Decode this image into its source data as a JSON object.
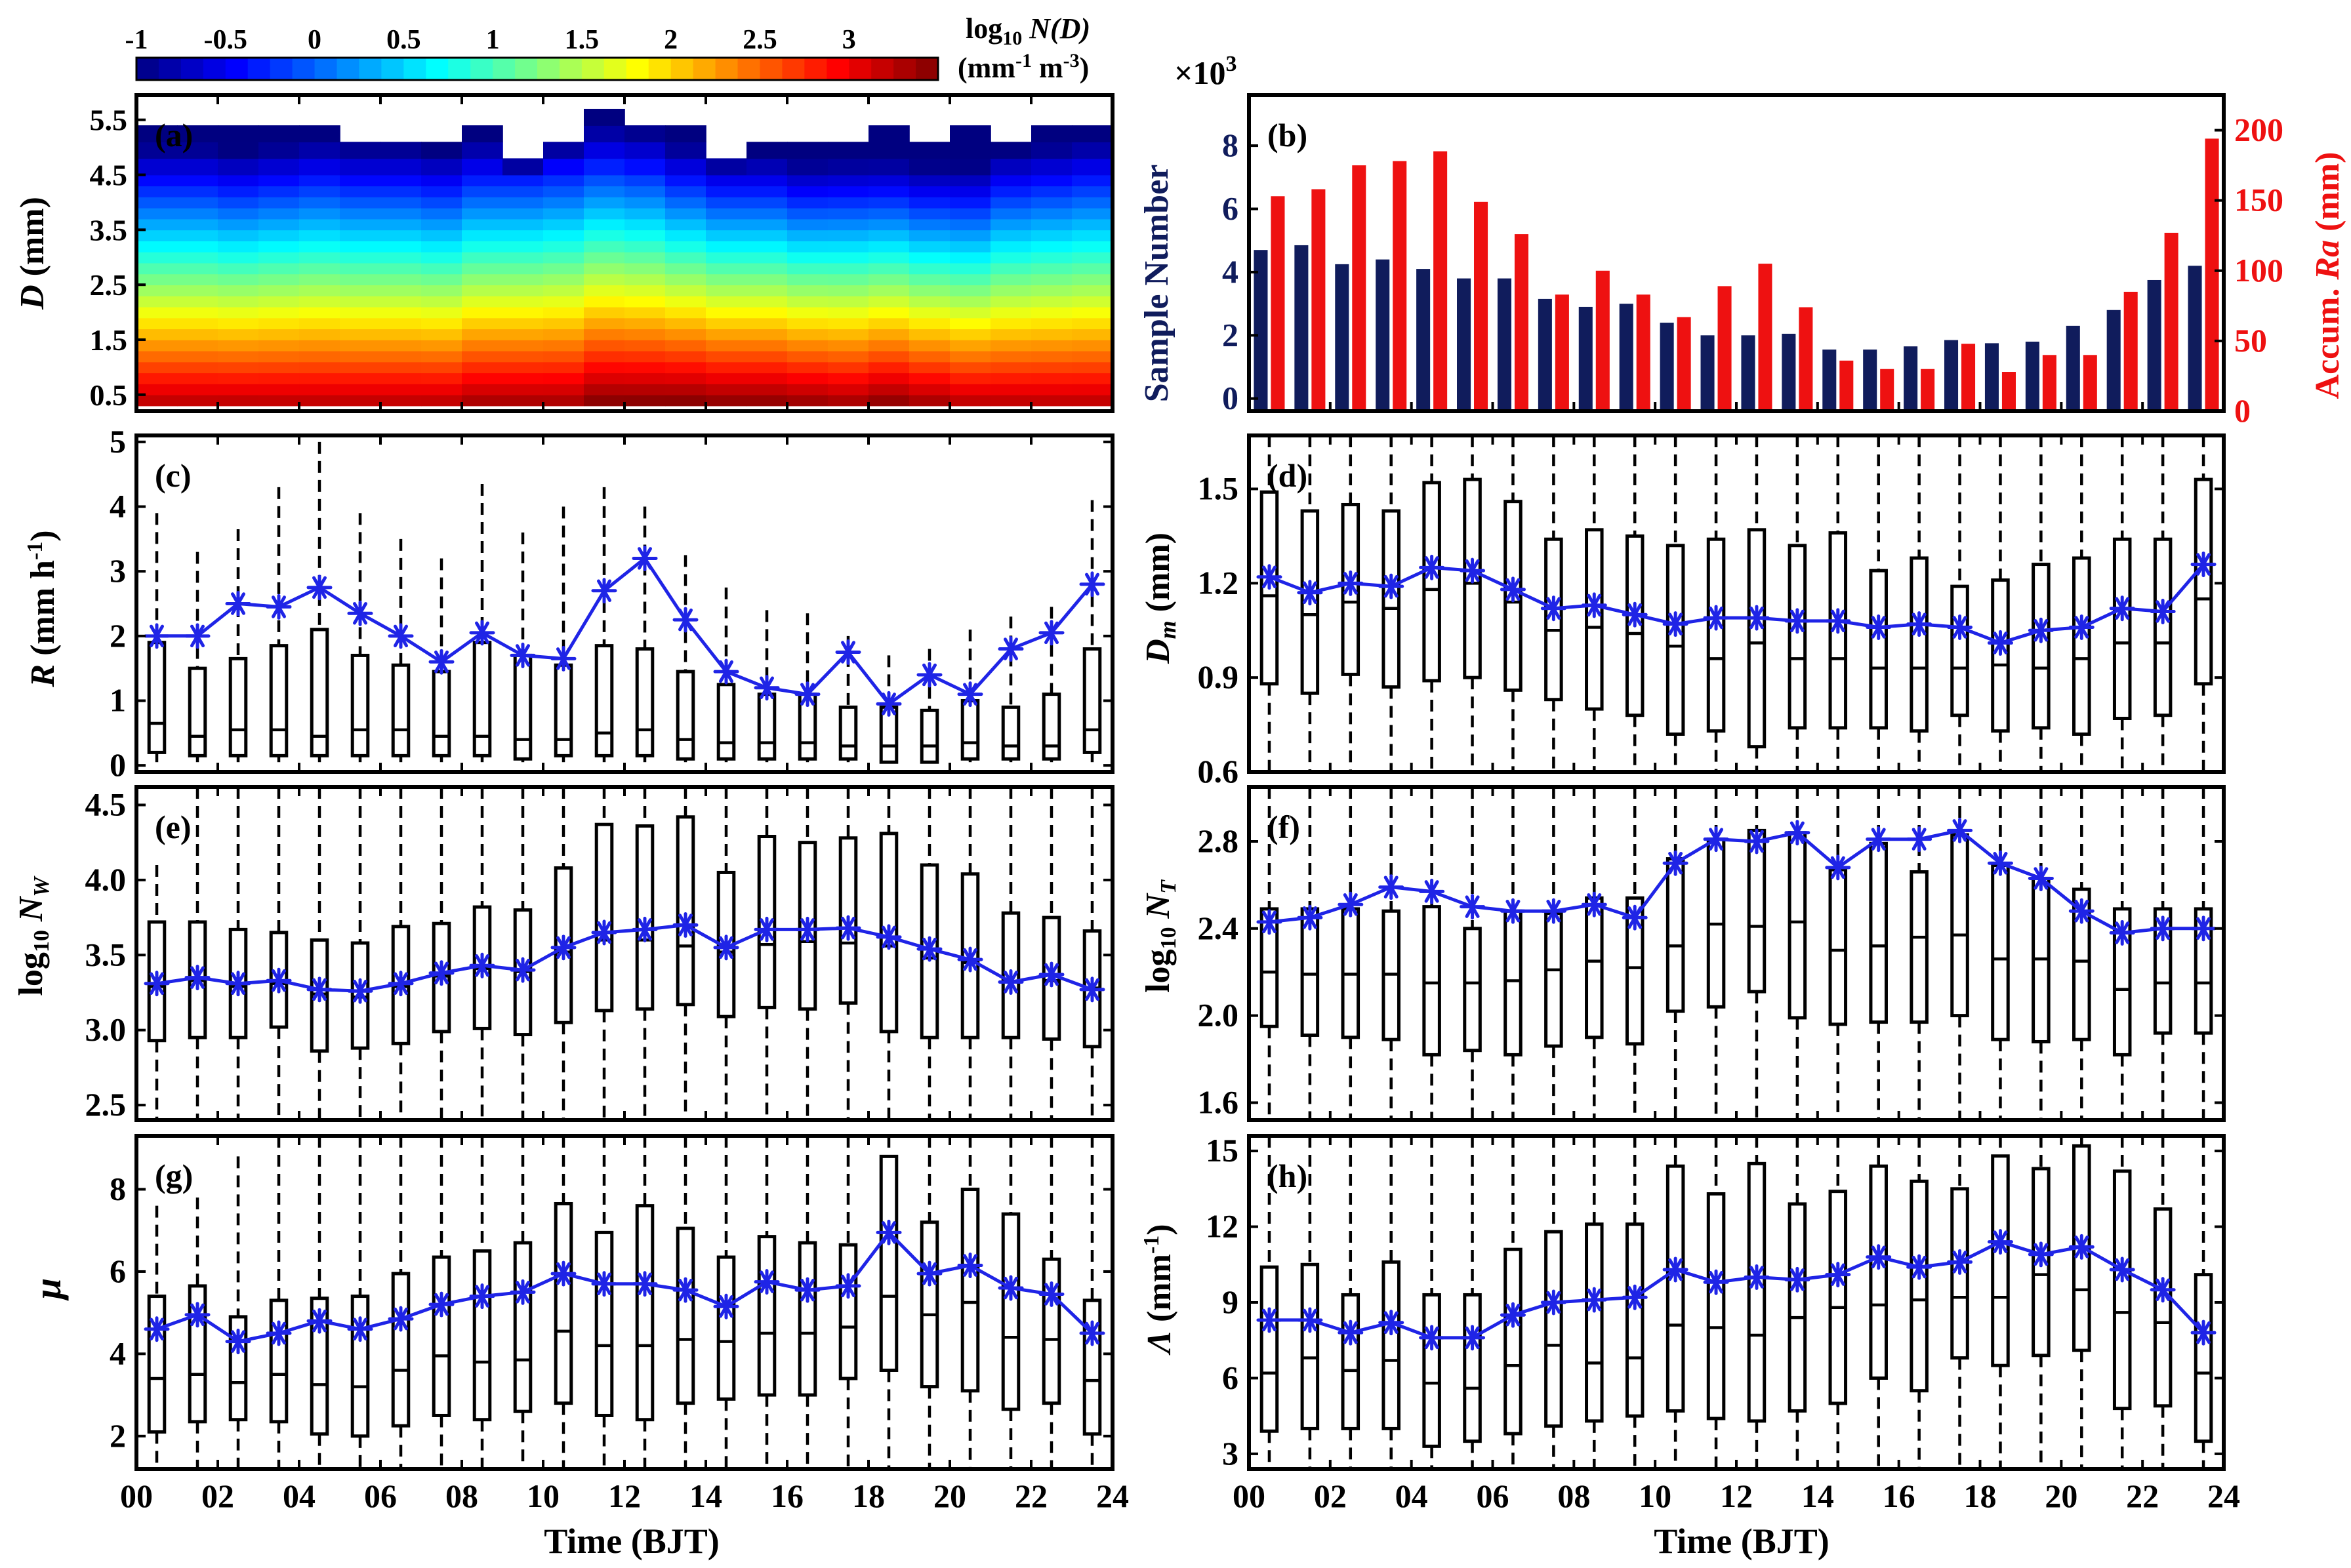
{
  "colorbar": {
    "label_line1": "log",
    "label_sub": "10",
    "label_line1b": " N(D)",
    "label_line2": "(mm",
    "label_line2_sup1": "-1",
    "label_line2b": " m",
    "label_line2_sup2": "-3",
    "label_line2c": ")",
    "ticks": [
      "-1",
      "-0.5",
      "0",
      "0.5",
      "1",
      "1.5",
      "2",
      "2.5",
      "3"
    ],
    "range": [
      -1,
      3.5
    ]
  },
  "xaxis": {
    "label": "Time (BJT)",
    "ticks": [
      "00",
      "02",
      "04",
      "06",
      "08",
      "10",
      "12",
      "14",
      "16",
      "18",
      "20",
      "22",
      "24"
    ]
  },
  "chart_data": [
    {
      "id": "a",
      "panel_label": "(a)",
      "type": "heatmap",
      "ylabel_italic": "D",
      "ylabel_rest": " (mm)",
      "yticks": [
        "0.5",
        "1.5",
        "2.5",
        "3.5",
        "4.5",
        "5.5"
      ],
      "diameter_bins_mm": [
        0.3,
        0.5,
        0.7,
        0.9,
        1.1,
        1.3,
        1.5,
        1.7,
        1.9,
        2.1,
        2.3,
        2.5,
        2.7,
        2.9,
        3.1,
        3.3,
        3.5,
        3.7,
        3.9,
        4.1,
        4.3,
        4.5,
        4.8,
        5.1,
        5.4,
        5.7
      ],
      "max_bin_index_per_hour": [
        23,
        23,
        23,
        23,
        23,
        22,
        22,
        22,
        23,
        21,
        22,
        24,
        23,
        23,
        21,
        22,
        22,
        22,
        23,
        22,
        23,
        22,
        23,
        23
      ],
      "log10_ND_at_0_5mm_per_hour": [
        3.1,
        3.1,
        3.1,
        3.1,
        3.1,
        3.1,
        3.1,
        3.1,
        3.2,
        3.2,
        3.2,
        3.35,
        3.35,
        3.35,
        3.3,
        3.3,
        3.25,
        3.2,
        3.3,
        3.2,
        3.1,
        3.1,
        3.1,
        3.1
      ],
      "log10_ND_slope_per_mm": [
        -0.9,
        -0.9,
        -0.92,
        -0.9,
        -0.88,
        -0.9,
        -0.9,
        -0.92,
        -0.9,
        -0.9,
        -0.88,
        -0.88,
        -0.9,
        -0.95,
        -0.98,
        -0.98,
        -1.0,
        -0.98,
        -1.0,
        -1.0,
        -0.98,
        -0.92,
        -0.9,
        -0.88
      ]
    },
    {
      "id": "b",
      "panel_label": "(b)",
      "type": "bar",
      "multiplier": "×10",
      "multiplier_sup": "3",
      "ylabel_left": "Sample Number",
      "ylabel_right_prefix": "Accum. ",
      "ylabel_right_italic": "Ra",
      "ylabel_right_suffix": " (mm)",
      "left_yticks": [
        "0",
        "2",
        "4",
        "6",
        "8"
      ],
      "right_yticks": [
        "0",
        "50",
        "100",
        "150",
        "200"
      ],
      "ylim_left": [
        -0.4,
        9.6
      ],
      "ylim_right": [
        0,
        225
      ],
      "series": [
        {
          "name": "Sample Number (×10^3)",
          "color": "#101c5c",
          "values": [
            4.7,
            4.85,
            4.25,
            4.4,
            4.1,
            3.8,
            3.8,
            3.15,
            2.9,
            3.0,
            2.4,
            2.0,
            2.0,
            2.05,
            1.55,
            1.55,
            1.65,
            1.85,
            1.75,
            1.8,
            2.3,
            2.8,
            3.75,
            4.2
          ]
        },
        {
          "name": "Accum. Ra (mm)",
          "color": "#ee1111",
          "values": [
            153,
            158,
            175,
            178,
            185,
            149,
            126,
            83,
            100,
            83,
            67,
            89,
            105,
            74,
            36,
            30,
            30,
            48,
            28,
            40,
            40,
            85,
            127,
            194
          ]
        }
      ]
    },
    {
      "id": "c",
      "panel_label": "(c)",
      "type": "boxplot",
      "ylabel_italic": "R",
      "ylabel_rest": " (mm h",
      "ylabel_sup": "-1",
      "ylabel_end": ")",
      "yticks": [
        "0",
        "1",
        "2",
        "3",
        "4",
        "5"
      ],
      "ylim": [
        -0.1,
        5.1
      ],
      "mean": [
        2.0,
        2.0,
        2.5,
        2.45,
        2.75,
        2.35,
        2.0,
        1.6,
        2.05,
        1.7,
        1.65,
        2.7,
        3.2,
        2.25,
        1.45,
        1.2,
        1.1,
        1.75,
        0.95,
        1.4,
        1.1,
        1.8,
        2.05,
        2.8
      ],
      "median": [
        0.65,
        0.45,
        0.55,
        0.55,
        0.45,
        0.55,
        0.55,
        0.45,
        0.45,
        0.4,
        0.4,
        0.5,
        0.55,
        0.4,
        0.35,
        0.35,
        0.35,
        0.3,
        0.3,
        0.3,
        0.35,
        0.3,
        0.3,
        0.55
      ],
      "q1": [
        0.2,
        0.15,
        0.15,
        0.15,
        0.15,
        0.15,
        0.15,
        0.15,
        0.15,
        0.1,
        0.15,
        0.15,
        0.15,
        0.1,
        0.1,
        0.1,
        0.1,
        0.1,
        0.05,
        0.05,
        0.1,
        0.1,
        0.1,
        0.2
      ],
      "q3": [
        1.9,
        1.5,
        1.65,
        1.85,
        2.1,
        1.7,
        1.55,
        1.45,
        1.9,
        1.7,
        1.55,
        1.85,
        1.8,
        1.45,
        1.25,
        1.1,
        1.1,
        0.9,
        0.9,
        0.85,
        1.0,
        0.9,
        1.1,
        1.8
      ],
      "whisker_low": [
        0.05,
        0.05,
        0.05,
        0.05,
        0.05,
        0.05,
        0.05,
        0.05,
        0.05,
        0.05,
        0.05,
        0.05,
        0.05,
        0.05,
        0.05,
        0.05,
        0.05,
        0.05,
        0.05,
        0.05,
        0.05,
        0.05,
        0.05,
        0.05
      ],
      "whisker_high": [
        3.9,
        3.3,
        3.65,
        4.3,
        5.0,
        3.9,
        3.5,
        3.2,
        4.35,
        3.6,
        4.0,
        4.3,
        4.0,
        3.25,
        2.75,
        2.4,
        2.35,
        2.0,
        1.7,
        1.8,
        2.1,
        2.3,
        2.45,
        4.1
      ]
    },
    {
      "id": "d",
      "panel_label": "(d)",
      "type": "boxplot",
      "ylabel_italic": "D",
      "ylabel_sub": "m",
      "ylabel_rest": " (mm)",
      "yticks": [
        "0.6",
        "0.9",
        "1.2",
        "1.5"
      ],
      "ylim": [
        0.6,
        1.67
      ],
      "mean": [
        1.22,
        1.17,
        1.2,
        1.19,
        1.25,
        1.24,
        1.18,
        1.12,
        1.13,
        1.1,
        1.07,
        1.09,
        1.09,
        1.08,
        1.08,
        1.06,
        1.07,
        1.06,
        1.01,
        1.05,
        1.06,
        1.12,
        1.11,
        1.26
      ],
      "median": [
        1.16,
        1.1,
        1.14,
        1.12,
        1.18,
        1.2,
        1.14,
        1.05,
        1.06,
        1.04,
        1.0,
        0.96,
        1.01,
        0.96,
        0.96,
        0.93,
        0.93,
        0.93,
        0.94,
        0.93,
        0.96,
        1.01,
        1.01,
        1.15
      ],
      "q1": [
        0.88,
        0.85,
        0.91,
        0.87,
        0.89,
        0.9,
        0.86,
        0.83,
        0.8,
        0.78,
        0.72,
        0.73,
        0.68,
        0.74,
        0.74,
        0.74,
        0.73,
        0.78,
        0.73,
        0.74,
        0.72,
        0.77,
        0.78,
        0.88
      ],
      "q3": [
        1.49,
        1.43,
        1.45,
        1.43,
        1.52,
        1.53,
        1.46,
        1.34,
        1.37,
        1.35,
        1.32,
        1.34,
        1.37,
        1.32,
        1.36,
        1.24,
        1.28,
        1.19,
        1.21,
        1.26,
        1.28,
        1.34,
        1.34,
        1.53
      ],
      "whisker_low": [
        0.6,
        0.6,
        0.6,
        0.6,
        0.6,
        0.6,
        0.6,
        0.6,
        0.6,
        0.6,
        0.6,
        0.6,
        0.6,
        0.6,
        0.6,
        0.6,
        0.6,
        0.6,
        0.6,
        0.6,
        0.6,
        0.6,
        0.6,
        0.6
      ],
      "whisker_high": [
        1.67,
        1.67,
        1.67,
        1.67,
        1.67,
        1.67,
        1.67,
        1.67,
        1.67,
        1.67,
        1.67,
        1.67,
        1.67,
        1.67,
        1.67,
        1.67,
        1.67,
        1.67,
        1.67,
        1.67,
        1.67,
        1.67,
        1.67,
        1.67
      ]
    },
    {
      "id": "e",
      "panel_label": "(e)",
      "type": "boxplot",
      "ylabel_prefix": "log",
      "ylabel_prefix_sub": "10",
      "ylabel_italic": " N",
      "ylabel_sub": "W",
      "yticks": [
        "2.5",
        "3.0",
        "3.5",
        "4.0",
        "4.5"
      ],
      "ylim": [
        2.4,
        4.62
      ],
      "mean": [
        3.31,
        3.35,
        3.31,
        3.33,
        3.27,
        3.26,
        3.31,
        3.38,
        3.43,
        3.4,
        3.55,
        3.65,
        3.67,
        3.7,
        3.55,
        3.67,
        3.67,
        3.68,
        3.62,
        3.54,
        3.47,
        3.32,
        3.37,
        3.27
      ],
      "median": [
        3.29,
        3.33,
        3.29,
        3.31,
        3.24,
        3.22,
        3.29,
        3.36,
        3.41,
        3.39,
        3.52,
        3.6,
        3.6,
        3.56,
        3.52,
        3.57,
        3.59,
        3.58,
        3.56,
        3.48,
        3.45,
        3.32,
        3.33,
        3.28
      ],
      "q1": [
        2.93,
        2.95,
        2.95,
        3.02,
        2.86,
        2.88,
        2.91,
        2.99,
        3.01,
        2.97,
        3.05,
        3.13,
        3.14,
        3.17,
        3.09,
        3.15,
        3.14,
        3.18,
        2.99,
        2.95,
        2.95,
        2.95,
        2.94,
        2.89
      ],
      "q3": [
        3.72,
        3.72,
        3.67,
        3.65,
        3.6,
        3.58,
        3.69,
        3.71,
        3.82,
        3.8,
        4.08,
        4.37,
        4.36,
        4.42,
        4.05,
        4.29,
        4.25,
        4.28,
        4.31,
        4.1,
        4.04,
        3.78,
        3.75,
        3.66
      ],
      "whisker_low": [
        2.4,
        2.4,
        2.4,
        2.4,
        2.4,
        2.4,
        2.4,
        2.4,
        2.4,
        2.4,
        2.4,
        2.4,
        2.4,
        2.4,
        2.4,
        2.4,
        2.4,
        2.4,
        2.4,
        2.4,
        2.4,
        2.4,
        2.4,
        2.4
      ],
      "whisker_high": [
        4.1,
        4.62,
        4.62,
        4.62,
        4.62,
        4.62,
        4.62,
        4.62,
        4.62,
        4.62,
        4.62,
        4.62,
        4.62,
        4.62,
        4.62,
        4.62,
        4.62,
        4.62,
        4.62,
        4.62,
        4.62,
        4.62,
        4.62,
        4.62
      ]
    },
    {
      "id": "f",
      "panel_label": "(f)",
      "type": "boxplot",
      "ylabel_prefix": "log",
      "ylabel_prefix_sub": "10",
      "ylabel_italic": " N",
      "ylabel_sub": "T",
      "yticks": [
        "1.6",
        "2.0",
        "2.4",
        "2.8"
      ],
      "ylim": [
        1.52,
        3.05
      ],
      "mean": [
        2.43,
        2.45,
        2.51,
        2.59,
        2.57,
        2.5,
        2.48,
        2.48,
        2.51,
        2.45,
        2.7,
        2.81,
        2.8,
        2.84,
        2.68,
        2.81,
        2.81,
        2.85,
        2.7,
        2.63,
        2.48,
        2.38,
        2.4,
        2.4
      ],
      "median": [
        2.2,
        2.19,
        2.19,
        2.19,
        2.15,
        2.15,
        2.16,
        2.21,
        2.25,
        2.22,
        2.32,
        2.42,
        2.41,
        2.43,
        2.3,
        2.32,
        2.36,
        2.37,
        2.26,
        2.26,
        2.25,
        2.12,
        2.15,
        2.15
      ],
      "q1": [
        1.95,
        1.91,
        1.9,
        1.89,
        1.82,
        1.84,
        1.82,
        1.86,
        1.9,
        1.87,
        2.02,
        2.04,
        2.11,
        1.99,
        1.96,
        1.97,
        1.97,
        2.0,
        1.89,
        1.88,
        1.89,
        1.82,
        1.92,
        1.92
      ],
      "q3": [
        2.49,
        2.49,
        2.49,
        2.48,
        2.5,
        2.4,
        2.48,
        2.47,
        2.54,
        2.54,
        2.72,
        2.81,
        2.85,
        2.84,
        2.67,
        2.79,
        2.66,
        2.83,
        2.69,
        2.63,
        2.58,
        2.49,
        2.49,
        2.49
      ],
      "whisker_low": [
        1.52,
        1.52,
        1.52,
        1.52,
        1.52,
        1.52,
        1.52,
        1.52,
        1.52,
        1.52,
        1.52,
        1.52,
        1.52,
        1.52,
        1.52,
        1.52,
        1.52,
        1.52,
        1.52,
        1.52,
        1.52,
        1.52,
        1.52,
        1.52
      ],
      "whisker_high": [
        3.05,
        3.05,
        3.05,
        3.05,
        3.05,
        3.05,
        3.05,
        3.05,
        3.05,
        3.05,
        3.05,
        3.05,
        3.05,
        3.05,
        3.05,
        3.05,
        3.05,
        3.05,
        3.05,
        3.05,
        3.05,
        3.05,
        3.05,
        3.05
      ]
    },
    {
      "id": "g",
      "panel_label": "(g)",
      "type": "boxplot",
      "ylabel_italic": "μ",
      "yticks": [
        "2",
        "4",
        "6",
        "8"
      ],
      "ylim": [
        1.2,
        9.3
      ],
      "mean": [
        4.6,
        4.95,
        4.3,
        4.5,
        4.8,
        4.6,
        4.85,
        5.2,
        5.4,
        5.5,
        5.95,
        5.7,
        5.7,
        5.55,
        5.15,
        5.75,
        5.55,
        5.65,
        6.95,
        5.95,
        6.15,
        5.6,
        5.45,
        4.5
      ],
      "median": [
        3.4,
        3.5,
        3.3,
        3.5,
        3.25,
        3.2,
        3.6,
        3.95,
        3.8,
        3.85,
        4.55,
        4.2,
        4.2,
        4.35,
        4.3,
        4.5,
        4.5,
        4.65,
        5.4,
        4.95,
        5.25,
        4.4,
        4.35,
        3.35
      ],
      "q1": [
        2.1,
        2.35,
        2.4,
        2.35,
        2.05,
        2.0,
        2.25,
        2.5,
        2.4,
        2.6,
        2.8,
        2.5,
        2.4,
        2.8,
        2.9,
        3.0,
        3.0,
        3.4,
        3.6,
        3.2,
        3.1,
        2.65,
        2.8,
        2.05
      ],
      "q3": [
        5.4,
        5.65,
        4.9,
        5.3,
        5.35,
        5.4,
        5.95,
        6.35,
        6.5,
        6.7,
        7.65,
        6.95,
        7.6,
        7.05,
        6.35,
        6.85,
        6.7,
        6.65,
        8.8,
        7.2,
        8.0,
        7.4,
        6.3,
        5.3
      ],
      "whisker_low": [
        1.2,
        1.2,
        1.2,
        1.2,
        1.2,
        1.2,
        1.2,
        1.2,
        1.2,
        1.2,
        1.2,
        1.2,
        1.2,
        1.2,
        1.2,
        1.2,
        1.2,
        1.2,
        1.2,
        1.2,
        1.2,
        1.2,
        1.2,
        1.2
      ],
      "whisker_high": [
        7.6,
        7.8,
        8.8,
        9.3,
        9.3,
        9.3,
        9.3,
        9.3,
        9.3,
        9.3,
        9.3,
        9.3,
        9.3,
        9.3,
        9.3,
        9.3,
        9.3,
        9.3,
        9.3,
        9.3,
        9.3,
        9.3,
        9.3,
        9.3
      ]
    },
    {
      "id": "h",
      "panel_label": "(h)",
      "type": "boxplot",
      "ylabel_italic": "Λ",
      "ylabel_rest": " (mm",
      "ylabel_sup": "-1",
      "ylabel_end": ")",
      "yticks": [
        "3",
        "6",
        "9",
        "12",
        "15"
      ],
      "ylim": [
        2.4,
        15.6
      ],
      "mean": [
        8.3,
        8.3,
        7.8,
        8.2,
        7.6,
        7.6,
        8.5,
        9.0,
        9.1,
        9.2,
        10.3,
        9.8,
        10.0,
        9.9,
        10.1,
        10.8,
        10.4,
        10.6,
        11.4,
        10.9,
        11.2,
        10.3,
        9.5,
        7.8
      ],
      "median": [
        6.2,
        6.8,
        6.3,
        6.7,
        5.8,
        5.6,
        6.5,
        7.3,
        6.6,
        6.8,
        8.1,
        8.0,
        7.7,
        8.4,
        8.8,
        8.9,
        9.1,
        9.2,
        9.2,
        10.1,
        9.5,
        8.6,
        8.2,
        6.2
      ],
      "q1": [
        3.9,
        4.0,
        4.0,
        4.0,
        3.3,
        3.5,
        3.8,
        4.1,
        4.3,
        4.5,
        4.7,
        4.4,
        4.3,
        4.7,
        5.0,
        6.0,
        5.5,
        6.8,
        6.5,
        6.9,
        7.1,
        4.8,
        4.9,
        3.5
      ],
      "q3": [
        10.4,
        10.5,
        9.3,
        10.6,
        9.3,
        9.3,
        11.1,
        11.8,
        12.1,
        12.1,
        14.4,
        13.3,
        14.5,
        12.9,
        13.4,
        14.4,
        13.8,
        13.5,
        14.8,
        14.3,
        15.2,
        14.2,
        12.7,
        10.1
      ],
      "whisker_low": [
        2.4,
        2.4,
        2.4,
        2.4,
        2.4,
        2.4,
        2.4,
        2.4,
        2.4,
        2.4,
        2.4,
        2.4,
        2.4,
        2.4,
        2.4,
        2.4,
        2.4,
        2.4,
        2.4,
        2.4,
        2.4,
        2.4,
        2.4,
        2.4
      ],
      "whisker_high": [
        15.6,
        15.6,
        15.6,
        15.6,
        15.6,
        15.6,
        15.6,
        15.6,
        15.6,
        15.6,
        15.6,
        15.6,
        15.6,
        15.6,
        15.6,
        15.6,
        15.6,
        15.6,
        15.6,
        15.6,
        15.6,
        15.6,
        15.6,
        15.6
      ]
    }
  ]
}
